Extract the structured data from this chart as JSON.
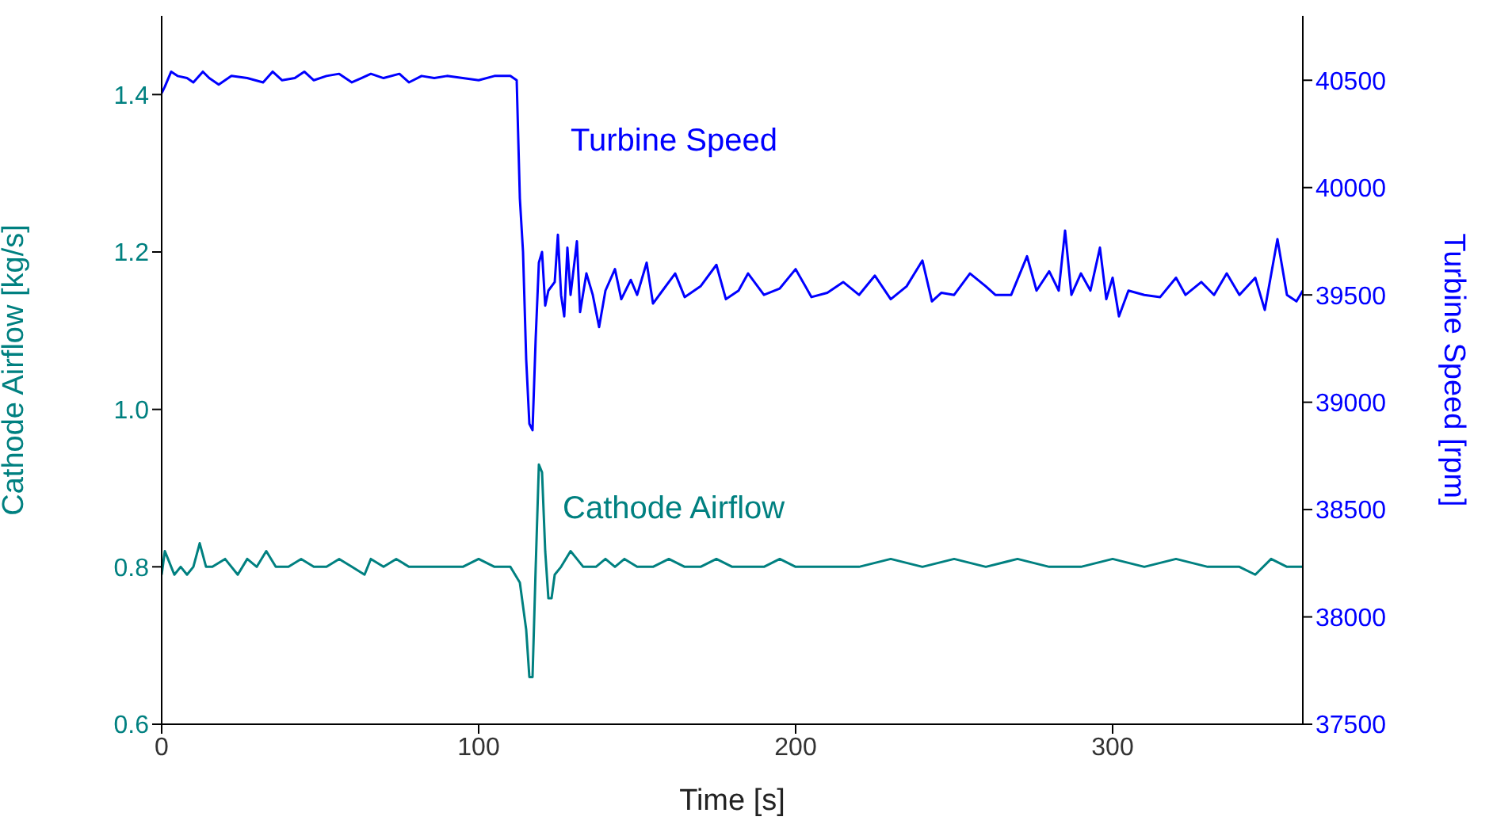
{
  "chart_data": {
    "type": "line",
    "xlabel": "Time [s]",
    "ylabel": "Cathode Airflow [kg/s]",
    "y2label": "Turbine Speed [rpm]",
    "xlim": [
      0,
      360
    ],
    "xticks": [
      0,
      100,
      200,
      300
    ],
    "ylim": [
      0.6,
      1.5
    ],
    "yticks": [
      0.6,
      0.8,
      {
        "value": 1.0,
        "label": "1.0"
      },
      1.2,
      1.4
    ],
    "y2lim": [
      37500,
      40800
    ],
    "y2ticks": [
      37500,
      38000,
      38500,
      39000,
      39500,
      40000,
      40500
    ],
    "legend": false,
    "grid": false,
    "marker": "none",
    "line_style": "solid",
    "series": [
      {
        "name": "Turbine Speed",
        "color": "#0000ff",
        "axis": "y2",
        "x": [
          0,
          1,
          3,
          5,
          8,
          10,
          13,
          15,
          18,
          22,
          27,
          32,
          35,
          38,
          42,
          45,
          48,
          52,
          56,
          60,
          63,
          66,
          70,
          75,
          78,
          82,
          86,
          90,
          95,
          100,
          105,
          110,
          112,
          113,
          114,
          115,
          116,
          117,
          118,
          119,
          120,
          121,
          122,
          124,
          125,
          126,
          127,
          128,
          129,
          131,
          132,
          134,
          136,
          138,
          140,
          143,
          145,
          148,
          150,
          153,
          155,
          158,
          162,
          165,
          170,
          175,
          178,
          182,
          185,
          190,
          195,
          200,
          205,
          210,
          215,
          220,
          225,
          230,
          235,
          240,
          243,
          246,
          250,
          255,
          260,
          263,
          268,
          273,
          276,
          280,
          283,
          285,
          287,
          290,
          293,
          296,
          298,
          300,
          302,
          305,
          310,
          315,
          320,
          323,
          328,
          332,
          336,
          340,
          345,
          348,
          352,
          355,
          358,
          360
        ],
        "values": [
          40440,
          40470,
          40540,
          40520,
          40510,
          40490,
          40540,
          40510,
          40480,
          40520,
          40510,
          40490,
          40540,
          40500,
          40510,
          40540,
          40500,
          40520,
          40530,
          40490,
          40510,
          40530,
          40510,
          40530,
          40490,
          40520,
          40510,
          40520,
          40510,
          40500,
          40520,
          40520,
          40500,
          39950,
          39700,
          39200,
          38900,
          38870,
          39300,
          39650,
          39700,
          39450,
          39520,
          39560,
          39780,
          39500,
          39400,
          39720,
          39500,
          39750,
          39420,
          39600,
          39500,
          39350,
          39520,
          39620,
          39480,
          39570,
          39500,
          39650,
          39460,
          39520,
          39600,
          39490,
          39540,
          39640,
          39480,
          39520,
          39600,
          39500,
          39530,
          39620,
          39490,
          39510,
          39560,
          39500,
          39590,
          39480,
          39540,
          39660,
          39470,
          39510,
          39500,
          39600,
          39540,
          39500,
          39500,
          39680,
          39520,
          39610,
          39520,
          39800,
          39500,
          39600,
          39520,
          39720,
          39480,
          39580,
          39400,
          39520,
          39500,
          39490,
          39580,
          39500,
          39560,
          39500,
          39600,
          39500,
          39580,
          39430,
          39760,
          39500,
          39470,
          39520
        ]
      },
      {
        "name": "Cathode Airflow",
        "color": "#008080",
        "x": [
          0,
          1,
          2,
          4,
          6,
          8,
          10,
          12,
          14,
          16,
          20,
          24,
          27,
          30,
          33,
          36,
          40,
          44,
          48,
          52,
          56,
          60,
          64,
          66,
          70,
          74,
          78,
          82,
          86,
          90,
          95,
          100,
          105,
          110,
          113,
          115,
          116,
          117,
          118,
          119,
          120,
          121,
          122,
          123,
          124,
          126,
          129,
          131,
          133,
          137,
          140,
          143,
          146,
          150,
          155,
          160,
          165,
          170,
          175,
          180,
          185,
          190,
          195,
          200,
          210,
          220,
          230,
          240,
          250,
          260,
          270,
          280,
          290,
          300,
          310,
          320,
          330,
          340,
          345,
          350,
          355,
          360
        ],
        "values": [
          0.79,
          0.82,
          0.81,
          0.79,
          0.8,
          0.79,
          0.8,
          0.83,
          0.8,
          0.8,
          0.81,
          0.79,
          0.81,
          0.8,
          0.82,
          0.8,
          0.8,
          0.81,
          0.8,
          0.8,
          0.81,
          0.8,
          0.79,
          0.81,
          0.8,
          0.81,
          0.8,
          0.8,
          0.8,
          0.8,
          0.8,
          0.81,
          0.8,
          0.8,
          0.78,
          0.72,
          0.66,
          0.66,
          0.8,
          0.93,
          0.92,
          0.82,
          0.76,
          0.76,
          0.79,
          0.8,
          0.82,
          0.81,
          0.8,
          0.8,
          0.81,
          0.8,
          0.81,
          0.8,
          0.8,
          0.81,
          0.8,
          0.8,
          0.81,
          0.8,
          0.8,
          0.8,
          0.81,
          0.8,
          0.8,
          0.8,
          0.81,
          0.8,
          0.81,
          0.8,
          0.81,
          0.8,
          0.8,
          0.81,
          0.8,
          0.81,
          0.8,
          0.8,
          0.79,
          0.81,
          0.8,
          0.8
        ]
      }
    ]
  }
}
